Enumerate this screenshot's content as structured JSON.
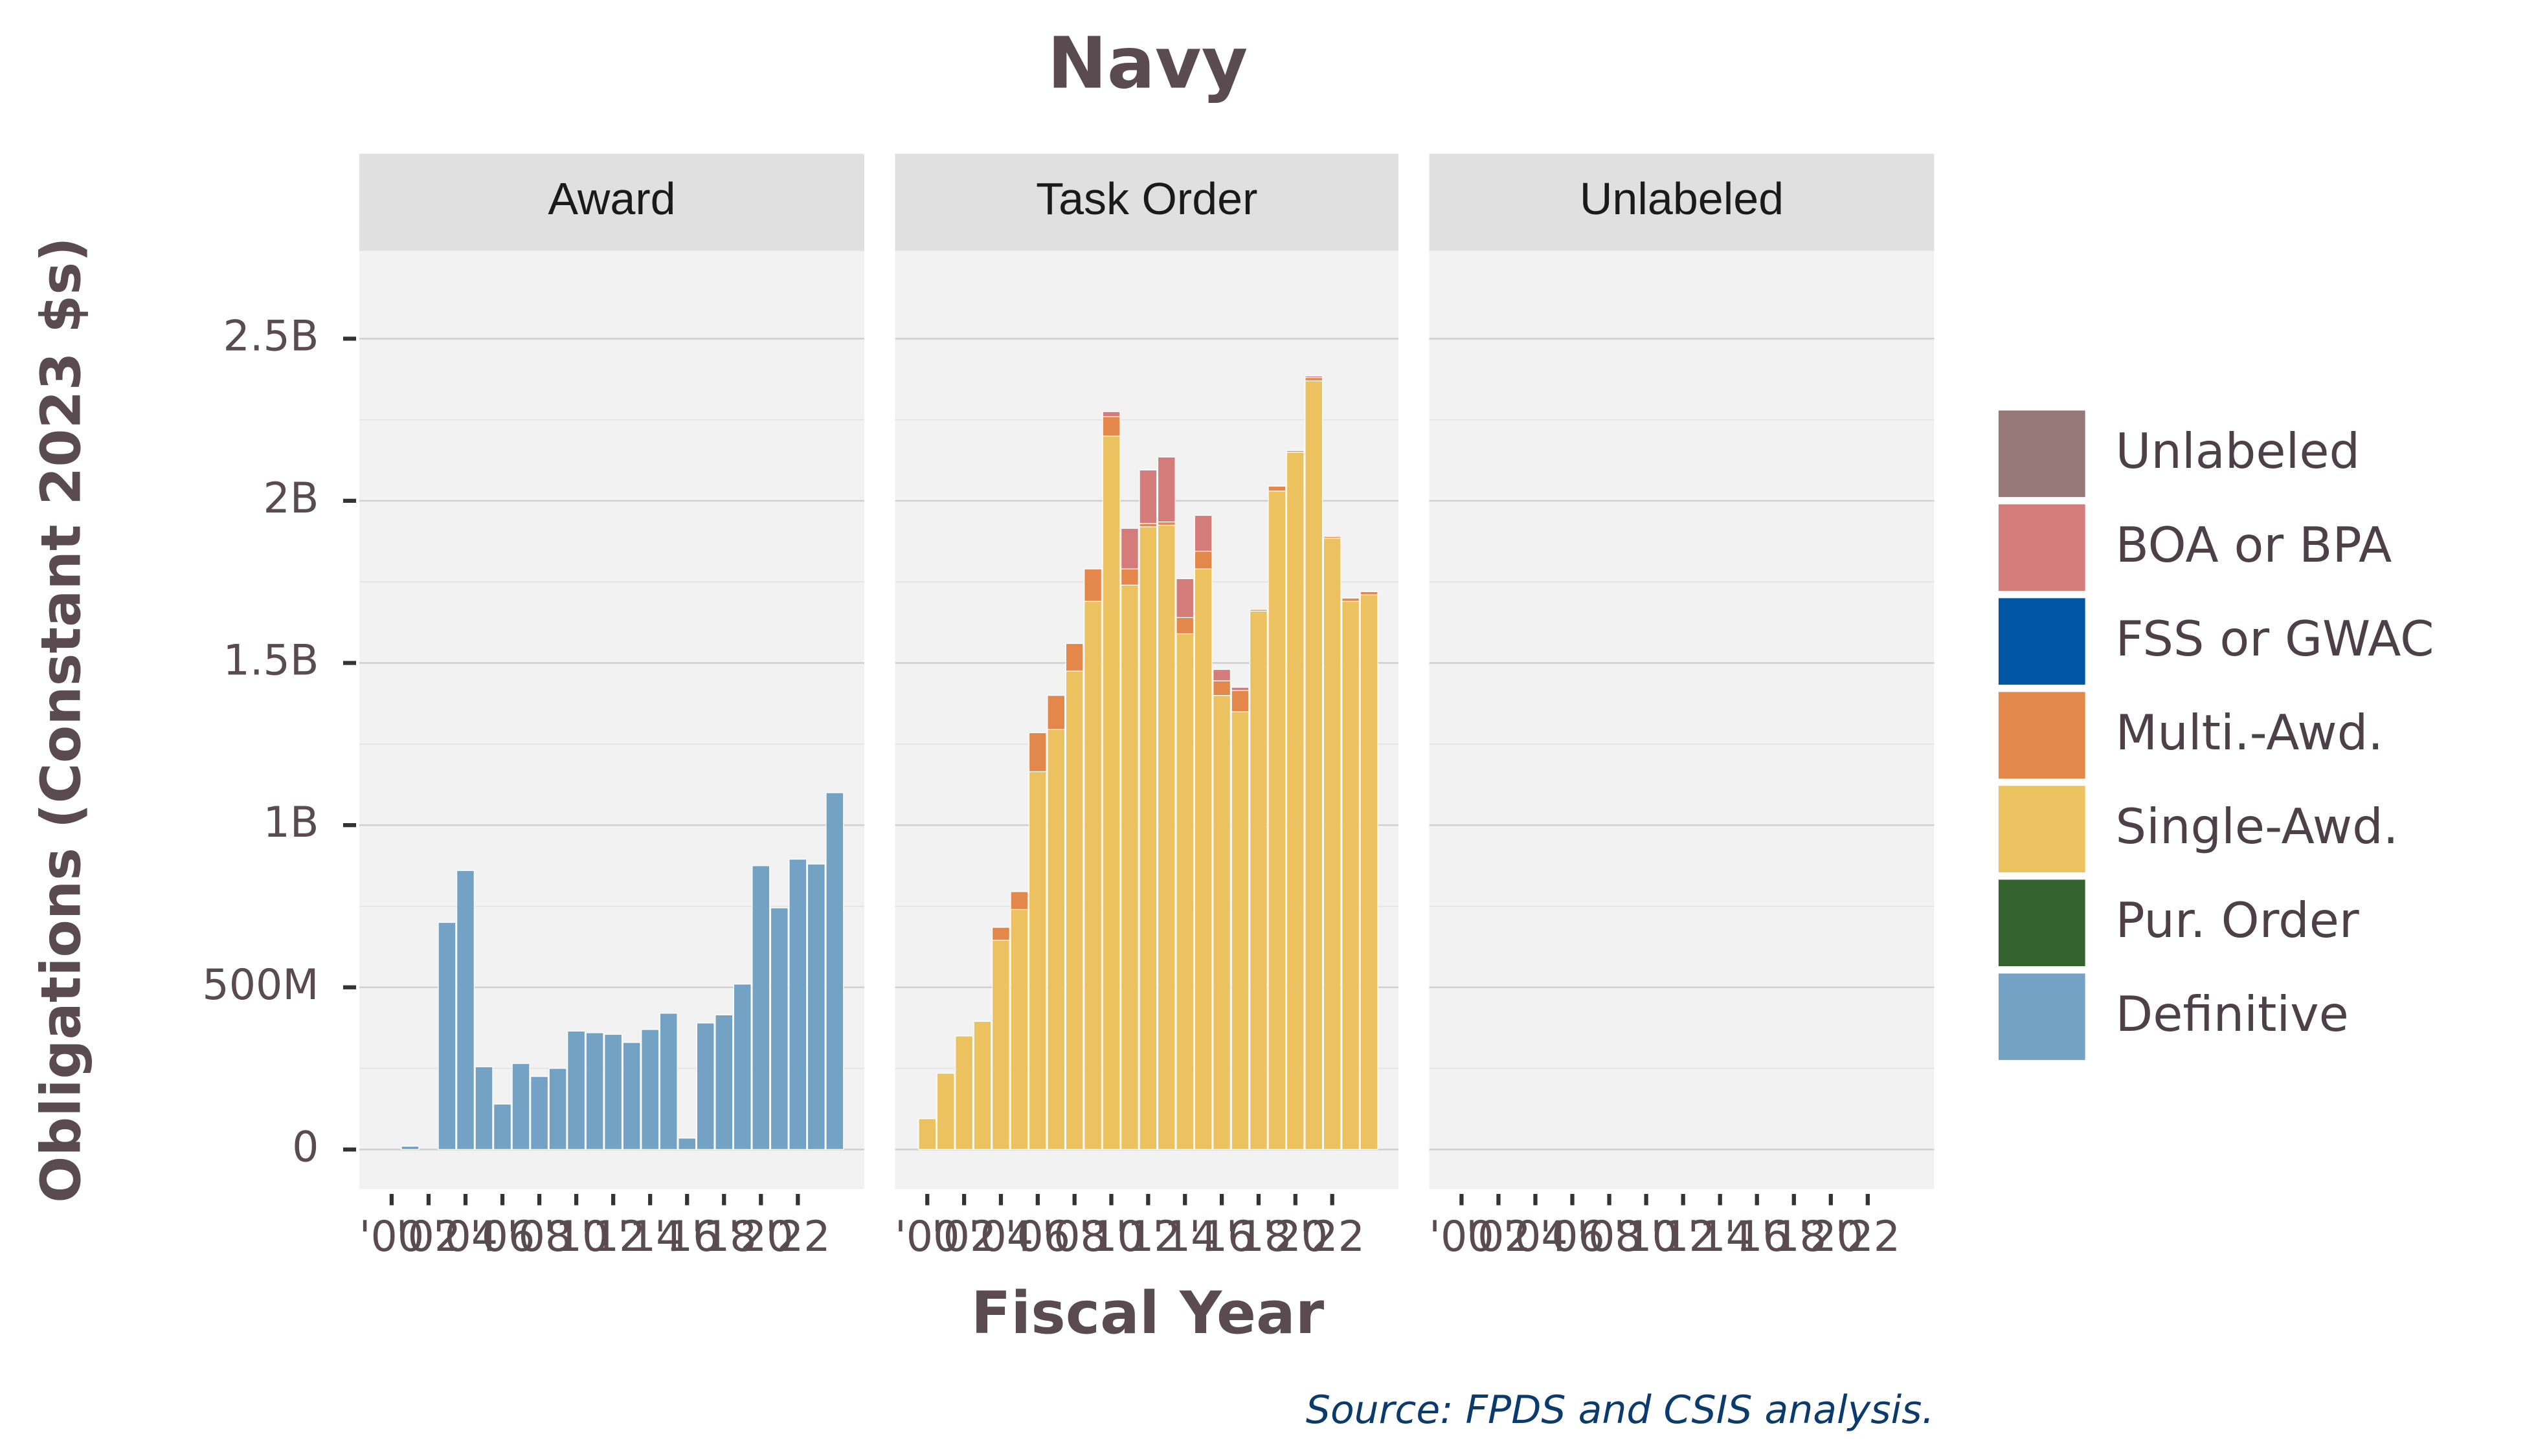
{
  "chart_data": {
    "type": "bar",
    "stacked": true,
    "title": "Navy",
    "x_label": "Fiscal Year",
    "y_label": "Obligations (Constant 2023 $s)",
    "source": "Source: FPDS and CSIS analysis.",
    "x": [
      2000,
      2001,
      2002,
      2003,
      2004,
      2005,
      2006,
      2007,
      2008,
      2009,
      2010,
      2011,
      2012,
      2013,
      2014,
      2015,
      2016,
      2017,
      2018,
      2019,
      2020,
      2021,
      2022,
      2023,
      2024
    ],
    "xlim": [
      1998.25,
      2025.6
    ],
    "xticks": [
      {
        "value": 2000,
        "label": "'00"
      },
      {
        "value": 2002,
        "label": "'02"
      },
      {
        "value": 2004,
        "label": "'04"
      },
      {
        "value": 2006,
        "label": "'06"
      },
      {
        "value": 2008,
        "label": "'08"
      },
      {
        "value": 2010,
        "label": "'10"
      },
      {
        "value": 2012,
        "label": "'12"
      },
      {
        "value": 2014,
        "label": "'14"
      },
      {
        "value": 2016,
        "label": "'16"
      },
      {
        "value": 2018,
        "label": "'18"
      },
      {
        "value": 2020,
        "label": "'20"
      },
      {
        "value": 2022,
        "label": "'22"
      }
    ],
    "ylim": [
      -122000000.0,
      2771000000.0
    ],
    "yticks": [
      0,
      {
        "value": 500000000.0,
        "label": "500M"
      },
      {
        "value": 1000000000.0,
        "label": "1B"
      },
      {
        "value": 1500000000.0,
        "label": "1.5B"
      },
      {
        "value": 2000000000.0,
        "label": "2B"
      },
      {
        "value": 2500000000.0,
        "label": "2.5B"
      }
    ],
    "minor_yticks": [
      250000000.0,
      750000000.0,
      1250000000.0,
      1750000000.0,
      2250000000.0
    ],
    "grid": true,
    "legend_position": "right",
    "series": [
      {
        "name": "Unlabeled",
        "color": "#967878"
      },
      {
        "name": "BOA or BPA",
        "color": "#d47c7a"
      },
      {
        "name": "FSS or GWAC",
        "color": "#0055a5"
      },
      {
        "name": "Multi.-Awd.",
        "color": "#e3884a"
      },
      {
        "name": "Single-Awd.",
        "color": "#ecc160"
      },
      {
        "name": "Pur. Order",
        "color": "#356330"
      },
      {
        "name": "Definitive",
        "color": "#74a2c4"
      }
    ],
    "facets": [
      {
        "title": "Award",
        "layers": [
          {
            "name": "Definitive",
            "values": [
              null,
              10000000.0,
              null,
              700000000.0,
              860000000.0,
              255000000.0,
              140000000.0,
              265000000.0,
              225000000.0,
              250000000.0,
              365000000.0,
              360000000.0,
              355000000.0,
              330000000.0,
              370000000.0,
              420000000.0,
              35000000.0,
              390000000.0,
              415000000.0,
              510000000.0,
              875000000.0,
              745000000.0,
              895000000.0,
              880000000.0,
              1100000000.0
            ]
          }
        ]
      },
      {
        "title": "Task Order",
        "layers": [
          {
            "name": "Single-Awd.",
            "values": [
              95000000.0,
              235000000.0,
              350000000.0,
              395000000.0,
              645000000.0,
              740000000.0,
              1165000000.0,
              1295000000.0,
              1475000000.0,
              1690000000.0,
              2200000000.0,
              1740000000.0,
              1920000000.0,
              1925000000.0,
              1590000000.0,
              1790000000.0,
              1400000000.0,
              1350000000.0,
              1660000000.0,
              2030000000.0,
              2150000000.0,
              2370000000.0,
              1885000000.0,
              1690000000.0,
              1710000000.0
            ]
          },
          {
            "name": "Multi.-Awd.",
            "values": [
              null,
              null,
              null,
              null,
              40000000.0,
              55000000.0,
              120000000.0,
              105000000.0,
              85000000.0,
              100000000.0,
              60000000.0,
              50000000.0,
              10000000.0,
              10000000.0,
              50000000.0,
              55000000.0,
              45000000.0,
              65000000.0,
              5000000.0,
              15000000.0,
              5000000.0,
              10000000.0,
              5000000.0,
              10000000.0,
              10000000.0
            ]
          },
          {
            "name": "BOA or BPA",
            "values": [
              null,
              null,
              null,
              null,
              null,
              null,
              null,
              null,
              null,
              null,
              15000000.0,
              125000000.0,
              165000000.0,
              200000000.0,
              120000000.0,
              110000000.0,
              35000000.0,
              10000000.0,
              null,
              null,
              null,
              5000000.0,
              null,
              null,
              null
            ]
          }
        ]
      },
      {
        "title": "Unlabeled",
        "layers": []
      }
    ]
  }
}
